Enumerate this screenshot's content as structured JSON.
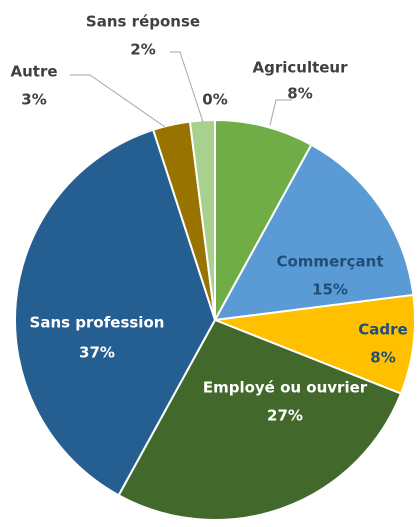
{
  "chart_data": {
    "type": "pie",
    "categories": [
      "Agriculteur",
      "Commerçant",
      "Cadre",
      "Employé ou ouvrier",
      "Sans profession",
      "Autre",
      "Sans réponse",
      null
    ],
    "values": [
      8,
      15,
      8,
      27,
      37,
      3,
      2,
      0
    ],
    "value_labels": [
      "8%",
      "15%",
      "8%",
      "27%",
      "37%",
      "3%",
      "2%",
      "0%"
    ],
    "colors": [
      "#70ad47",
      "#5b9bd5",
      "#ffc000",
      "#43682b",
      "#255e91",
      "#997300",
      "#a9d18e",
      "#7f7f7f"
    ]
  }
}
